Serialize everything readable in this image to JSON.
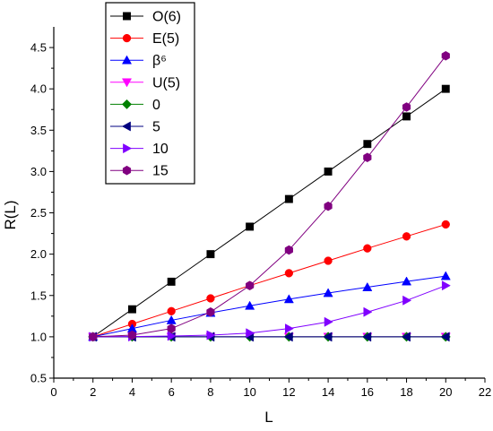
{
  "chart_data": {
    "type": "line",
    "xlabel": "L",
    "ylabel": "R(L)",
    "xlim": [
      0,
      22
    ],
    "ylim": [
      0.5,
      4.75
    ],
    "xticks": [
      0,
      2,
      4,
      6,
      8,
      10,
      12,
      14,
      16,
      18,
      20,
      22
    ],
    "yticks": [
      0.5,
      1.0,
      1.5,
      2.0,
      2.5,
      3.0,
      3.5,
      4.0,
      4.5
    ],
    "ytick_labels": [
      "0.5",
      "1.0",
      "1.5",
      "2.0",
      "2.5",
      "3.0",
      "3.5",
      "4.0",
      "4.5"
    ],
    "grid": false,
    "legend_position": "top-left",
    "x": [
      2,
      4,
      6,
      8,
      10,
      12,
      14,
      16,
      18,
      20
    ],
    "series": [
      {
        "name": "O(6)",
        "color": "#000000",
        "marker": "square",
        "values": [
          1.0,
          1.333,
          1.667,
          2.0,
          2.333,
          2.667,
          3.0,
          3.333,
          3.667,
          4.0
        ]
      },
      {
        "name": "E(5)",
        "color": "#ff0000",
        "marker": "circle",
        "values": [
          1.0,
          1.155,
          1.31,
          1.465,
          1.62,
          1.77,
          1.92,
          2.07,
          2.215,
          2.36
        ]
      },
      {
        "name": "β⁶",
        "color": "#0000ff",
        "marker": "triangle-up",
        "values": [
          1.0,
          1.1,
          1.2,
          1.29,
          1.375,
          1.455,
          1.53,
          1.6,
          1.67,
          1.735
        ]
      },
      {
        "name": "U(5)",
        "color": "#ff00ff",
        "marker": "triangle-down",
        "values": [
          1.0,
          1.0,
          1.0,
          1.0,
          1.0,
          1.0,
          1.0,
          1.0,
          1.0,
          1.0
        ]
      },
      {
        "name": "0",
        "color": "#008000",
        "marker": "diamond",
        "values": [
          1.0,
          1.0,
          1.0,
          1.0,
          1.0,
          1.0,
          1.0,
          1.0,
          1.0,
          1.0
        ]
      },
      {
        "name": "5",
        "color": "#000080",
        "marker": "triangle-left",
        "values": [
          1.0,
          1.0,
          1.0,
          1.0,
          1.0,
          1.0,
          1.0,
          1.0,
          1.0,
          1.0
        ]
      },
      {
        "name": "10",
        "color": "#8000ff",
        "marker": "triangle-right",
        "values": [
          1.0,
          1.003,
          1.01,
          1.02,
          1.045,
          1.1,
          1.18,
          1.3,
          1.44,
          1.62
        ]
      },
      {
        "name": "15",
        "color": "#800080",
        "marker": "hexagon",
        "values": [
          1.0,
          1.02,
          1.1,
          1.3,
          1.62,
          2.05,
          2.58,
          3.17,
          3.78,
          4.4
        ]
      }
    ]
  }
}
